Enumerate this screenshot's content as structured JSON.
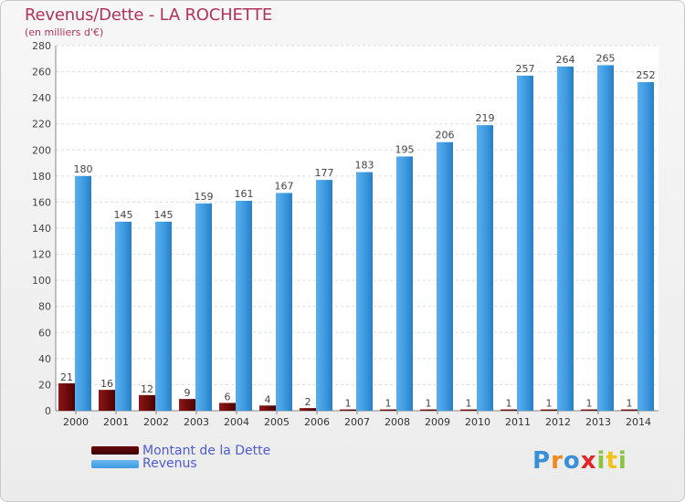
{
  "chart_data": {
    "type": "bar",
    "title": "Revenus/Dette - LA ROCHETTE",
    "subtitle": "(en milliers d'€)",
    "categories": [
      "2000",
      "2001",
      "2002",
      "2003",
      "2004",
      "2005",
      "2006",
      "2007",
      "2008",
      "2009",
      "2010",
      "2011",
      "2012",
      "2013",
      "2014"
    ],
    "series": [
      {
        "name": "Montant de la Dette",
        "color": "#6b0a0a",
        "values": [
          21,
          16,
          12,
          9,
          6,
          4,
          2,
          1,
          1,
          1,
          1,
          1,
          1,
          1,
          1
        ]
      },
      {
        "name": "Revenus",
        "color": "#3d9ae0",
        "values": [
          180,
          145,
          145,
          159,
          161,
          167,
          177,
          183,
          195,
          206,
          219,
          257,
          264,
          265,
          252
        ]
      }
    ],
    "yticks": [
      0,
      20,
      40,
      60,
      80,
      100,
      120,
      140,
      160,
      180,
      200,
      220,
      240,
      260,
      280
    ],
    "ylim": [
      0,
      280
    ],
    "grid": true,
    "legend": "bottom-left"
  },
  "logo": {
    "text": "Proxiti",
    "colors": [
      "#3a8fd9",
      "#f08a1c",
      "#3a8fd9",
      "#e4262b",
      "#8ac33e",
      "#f3c417",
      "#8ac33e"
    ]
  }
}
